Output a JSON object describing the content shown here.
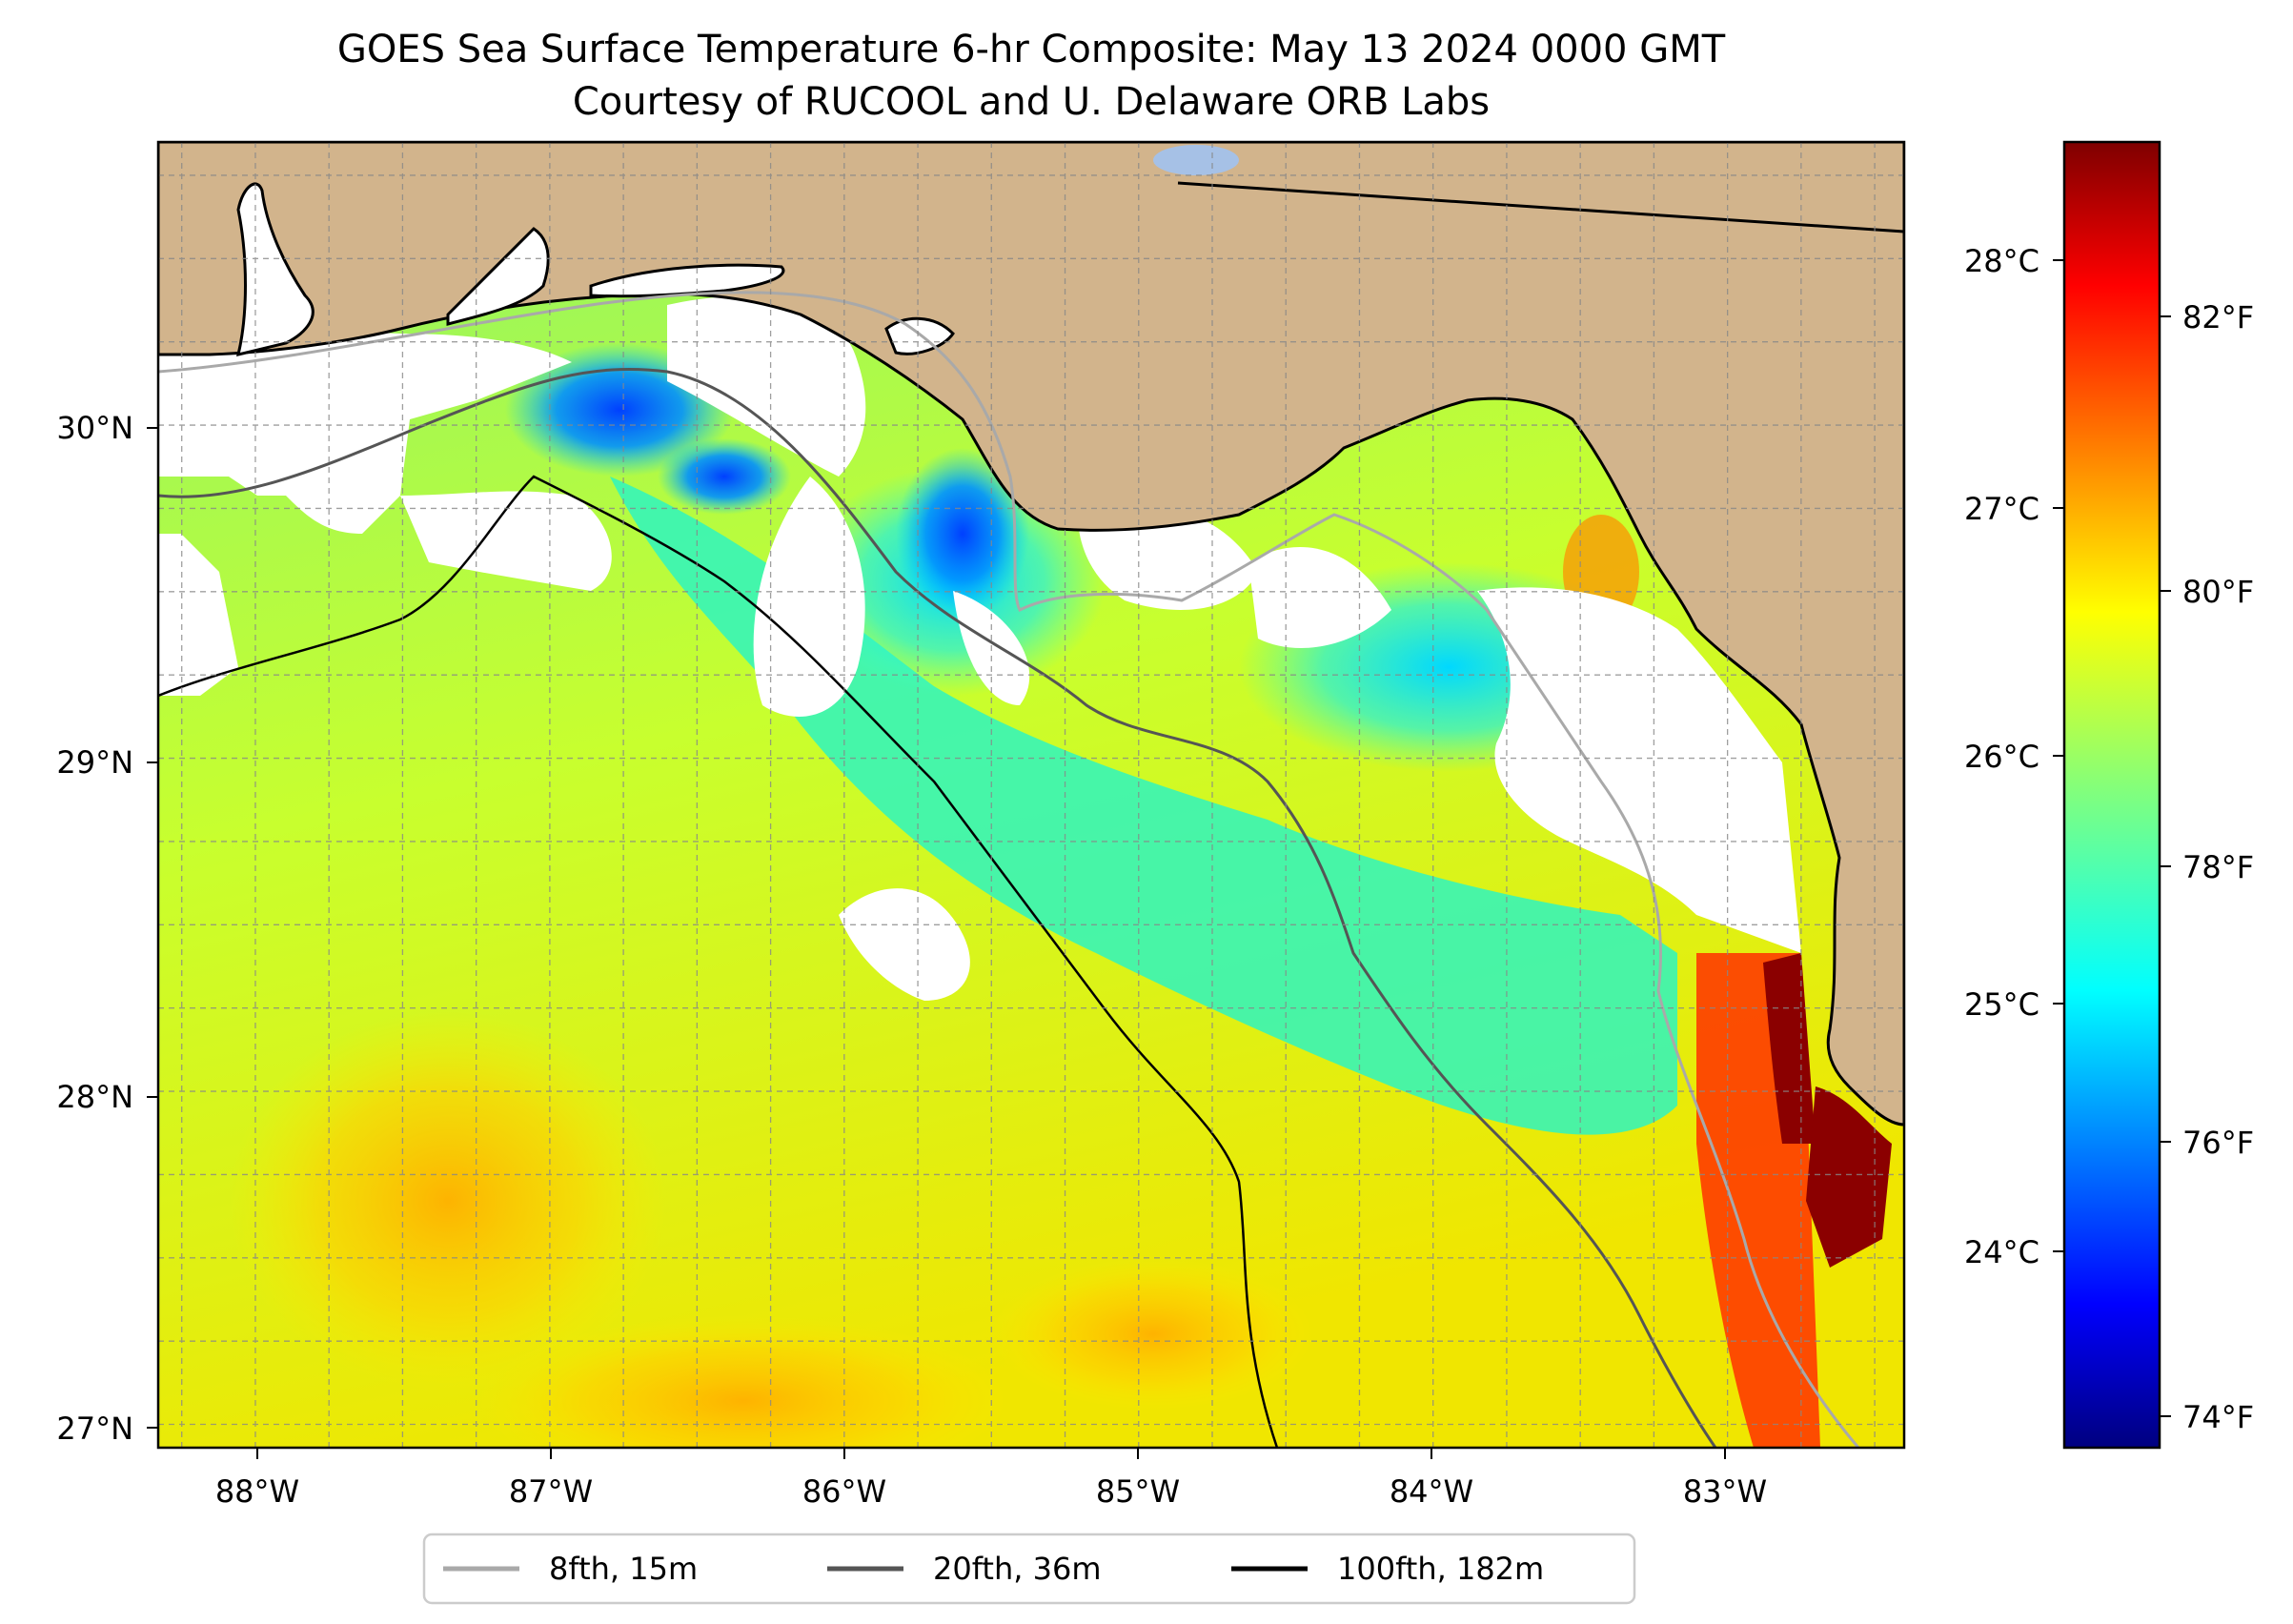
{
  "title": {
    "line1": "GOES Sea Surface Temperature 6-hr Composite: May 13 2024 0000 GMT",
    "line2": "Courtesy of RUCOOL and U. Delaware ORB Labs"
  },
  "map": {
    "lon_range": [
      -88.33,
      -82.4
    ],
    "lat_range": [
      26.93,
      30.85
    ],
    "lon_ticks": [
      "88°W",
      "87°W",
      "86°W",
      "85°W",
      "84°W",
      "83°W"
    ],
    "lat_ticks": [
      "30°N",
      "29°N",
      "28°N",
      "27°N"
    ],
    "gridlines": true,
    "colors": {
      "land": "#d2b48c",
      "no_data": "#ffffff",
      "lake": "#a6c1e6",
      "coastline": "#000000"
    }
  },
  "colorbar": {
    "colormap": "jet",
    "range_F": [
      73.6,
      83.6
    ],
    "celsius_ticks": [
      "28°C",
      "27°C",
      "26°C",
      "25°C",
      "24°C"
    ],
    "fahrenheit_ticks": [
      "82°F",
      "80°F",
      "78°F",
      "76°F",
      "74°F"
    ]
  },
  "legend": {
    "placement": "bottom-center",
    "items": [
      {
        "label": "8fth, 15m",
        "color": "#a9a9a9"
      },
      {
        "label": "20fth, 36m",
        "color": "#555555"
      },
      {
        "label": "100fth, 182m",
        "color": "#000000"
      }
    ]
  }
}
